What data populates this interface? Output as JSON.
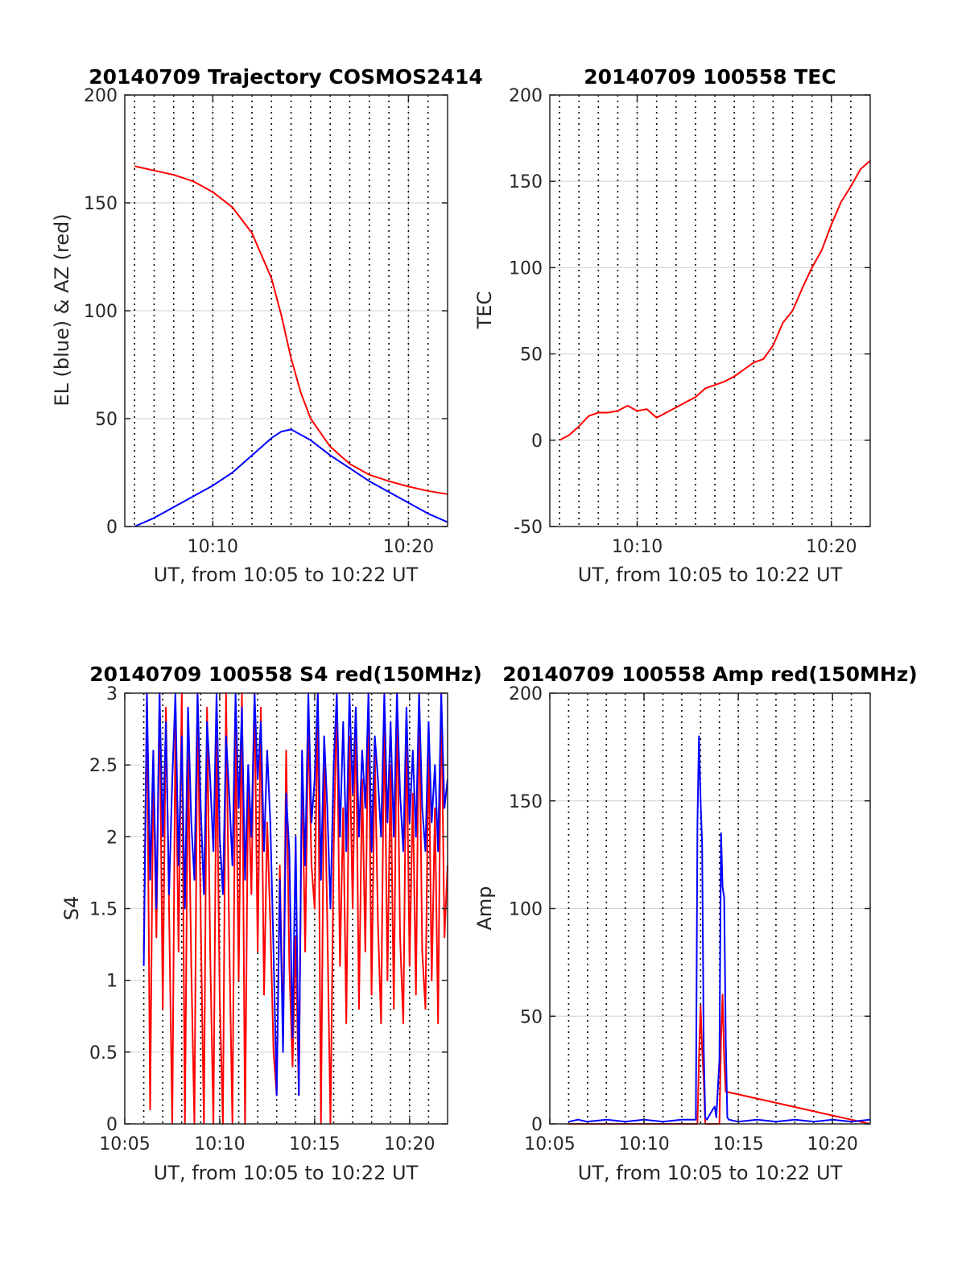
{
  "figure": {
    "background": "#ffffff"
  },
  "colors": {
    "az_line": "#ff0000",
    "el_line": "#0000ff",
    "grid": "#d9d9d9",
    "axes": "#262626",
    "vline": "#000000"
  },
  "chart_data": [
    {
      "id": "traj",
      "type": "line",
      "title": "20140709 Trajectory COSMOS2414",
      "xlabel": "UT, from 10:05 to 10:22 UT",
      "ylabel": "EL (blue) & AZ (red)",
      "xlim": [
        "10:05:30",
        "10:22:00"
      ],
      "ylim": [
        0,
        200
      ],
      "xticks": [
        "10:10",
        "10:20"
      ],
      "yticks": [
        0,
        50,
        100,
        150,
        200
      ],
      "grid": true,
      "series": [
        {
          "color": "#ff0000",
          "x": [
            "10:06:00",
            "10:07:00",
            "10:08:00",
            "10:09:00",
            "10:10:00",
            "10:11:00",
            "10:12:00",
            "10:13:00",
            "10:13:30",
            "10:14:00",
            "10:14:30",
            "10:15:00",
            "10:16:00",
            "10:17:00",
            "10:18:00",
            "10:19:00",
            "10:20:00",
            "10:21:00",
            "10:22:00"
          ],
          "values": [
            167,
            165,
            163,
            160,
            155,
            148,
            136,
            115,
            98,
            78,
            62,
            50,
            37,
            29,
            24,
            21,
            18.5,
            16.5,
            15
          ]
        },
        {
          "color": "#0000ff",
          "x": [
            "10:06:00",
            "10:07:00",
            "10:08:00",
            "10:09:00",
            "10:10:00",
            "10:11:00",
            "10:12:00",
            "10:13:00",
            "10:13:30",
            "10:14:00",
            "10:15:00",
            "10:16:00",
            "10:17:00",
            "10:18:00",
            "10:19:00",
            "10:20:00",
            "10:21:00",
            "10:22:00"
          ],
          "values": [
            0,
            4,
            9,
            14,
            19,
            25,
            33,
            41,
            44,
            45,
            40,
            33,
            27,
            21,
            16,
            11,
            6,
            2
          ]
        }
      ],
      "vlines": [
        "10:06:00",
        "10:07:00",
        "10:08:00",
        "10:09:00",
        "10:10:00",
        "10:11:00",
        "10:12:00",
        "10:13:00",
        "10:14:00",
        "10:15:00",
        "10:16:00",
        "10:17:00",
        "10:18:00",
        "10:19:00",
        "10:20:00",
        "10:21:00"
      ]
    },
    {
      "id": "tec",
      "type": "line",
      "title": "20140709 100558 TEC",
      "xlabel": "UT, from 10:05 to 10:22 UT",
      "ylabel": "TEC",
      "xlim": [
        "10:05:30",
        "10:22:00"
      ],
      "ylim": [
        -50,
        200
      ],
      "xticks": [
        "10:10",
        "10:20"
      ],
      "yticks": [
        -50,
        0,
        50,
        100,
        150,
        200
      ],
      "grid": true,
      "series": [
        {
          "color": "#ff0000",
          "x": [
            "10:06:00",
            "10:06:30",
            "10:07:00",
            "10:07:30",
            "10:08:00",
            "10:08:30",
            "10:09:00",
            "10:09:30",
            "10:10:00",
            "10:10:30",
            "10:11:00",
            "10:11:30",
            "10:12:00",
            "10:12:30",
            "10:13:00",
            "10:13:30",
            "10:14:00",
            "10:14:30",
            "10:15:00",
            "10:15:30",
            "10:16:00",
            "10:16:30",
            "10:17:00",
            "10:17:30",
            "10:18:00",
            "10:18:30",
            "10:19:00",
            "10:19:30",
            "10:20:00",
            "10:20:30",
            "10:21:00",
            "10:21:30",
            "10:22:00"
          ],
          "values": [
            0,
            3,
            8,
            14,
            16,
            16,
            17,
            20,
            17,
            18,
            13,
            16,
            19,
            22,
            25,
            30,
            32,
            34,
            37,
            41,
            45,
            47,
            55,
            68,
            75,
            88,
            100,
            110,
            125,
            138,
            147,
            157,
            162
          ]
        }
      ],
      "vlines": [
        "10:06:00",
        "10:07:00",
        "10:08:00",
        "10:09:00",
        "10:10:00",
        "10:11:00",
        "10:12:00",
        "10:13:00",
        "10:14:00",
        "10:15:00",
        "10:16:00",
        "10:17:00",
        "10:18:00",
        "10:19:00",
        "10:20:00",
        "10:21:00"
      ]
    },
    {
      "id": "s4",
      "type": "line",
      "title": "20140709 100558 S4 red(150MHz)",
      "xlabel": "UT, from 10:05 to 10:22 UT",
      "ylabel": "S4",
      "xlim": [
        "10:05:00",
        "10:22:00"
      ],
      "ylim": [
        0,
        3
      ],
      "xticks": [
        "10:05",
        "10:10",
        "10:15",
        "10:20"
      ],
      "yticks": [
        0,
        0.5,
        1,
        1.5,
        2,
        2.5,
        3
      ],
      "grid": true,
      "series": [
        {
          "color": "#ff0000",
          "x": [
            "10:06:00",
            "10:06:10",
            "10:06:20",
            "10:06:30",
            "10:06:40",
            "10:06:50",
            "10:07:00",
            "10:07:10",
            "10:07:20",
            "10:07:30",
            "10:07:40",
            "10:07:50",
            "10:08:00",
            "10:08:10",
            "10:08:20",
            "10:08:30",
            "10:08:40",
            "10:08:50",
            "10:09:00",
            "10:09:10",
            "10:09:20",
            "10:09:30",
            "10:09:40",
            "10:09:50",
            "10:10:00",
            "10:10:10",
            "10:10:20",
            "10:10:30",
            "10:10:40",
            "10:10:50",
            "10:11:00",
            "10:11:10",
            "10:11:20",
            "10:11:30",
            "10:11:40",
            "10:11:50",
            "10:12:00",
            "10:12:10",
            "10:12:20",
            "10:12:30",
            "10:12:40",
            "10:12:50",
            "10:13:00",
            "10:13:10",
            "10:13:20",
            "10:13:30",
            "10:13:40",
            "10:13:50",
            "10:14:00",
            "10:14:10",
            "10:14:20",
            "10:14:30",
            "10:14:40",
            "10:14:50",
            "10:15:00",
            "10:15:10",
            "10:15:20",
            "10:15:30",
            "10:15:40",
            "10:15:50",
            "10:16:00",
            "10:16:10",
            "10:16:20",
            "10:16:30",
            "10:16:40",
            "10:16:50",
            "10:17:00",
            "10:17:10",
            "10:17:20",
            "10:17:30",
            "10:17:40",
            "10:17:50",
            "10:18:00",
            "10:18:10",
            "10:18:20",
            "10:18:30",
            "10:18:40",
            "10:18:50",
            "10:19:00",
            "10:19:10",
            "10:19:20",
            "10:19:30",
            "10:19:40",
            "10:19:50",
            "10:20:00",
            "10:20:10",
            "10:20:20",
            "10:20:30",
            "10:20:40",
            "10:20:50",
            "10:21:00",
            "10:21:10",
            "10:21:20",
            "10:21:30",
            "10:21:40",
            "10:21:50",
            "10:22:00"
          ],
          "values": [
            1.2,
            3.0,
            0.1,
            2.5,
            1.3,
            3.0,
            0.8,
            2.9,
            1.5,
            0.0,
            2.8,
            1.2,
            3.0,
            0.0,
            2.6,
            1.1,
            0.0,
            3.0,
            1.4,
            0.0,
            2.9,
            1.2,
            0.0,
            2.7,
            0.9,
            0.0,
            3.0,
            1.3,
            0.0,
            2.8,
            1.0,
            3.0,
            0.0,
            2.4,
            1.6,
            3.0,
            1.2,
            2.9,
            0.9,
            2.1,
            1.4,
            0.5,
            0.2,
            1.8,
            0.6,
            2.6,
            1.1,
            0.4,
            1.3,
            0.2,
            2.5,
            1.2,
            2.8,
            1.8,
            1.5,
            3.0,
            0.0,
            2.6,
            1.4,
            0.0,
            1.9,
            3.0,
            1.1,
            2.2,
            0.7,
            2.7,
            1.5,
            2.9,
            0.8,
            2.4,
            1.2,
            3.0,
            0.9,
            2.6,
            1.4,
            0.7,
            2.9,
            1.0,
            2.5,
            0.8,
            3.0,
            1.3,
            0.7,
            2.8,
            1.1,
            2.3,
            0.9,
            3.0,
            1.2,
            0.8,
            2.7,
            1.0,
            2.2,
            0.7,
            3.0,
            1.3,
            1.8
          ]
        },
        {
          "color": "#0000ff",
          "x": [
            "10:06:00",
            "10:06:10",
            "10:06:20",
            "10:06:30",
            "10:06:40",
            "10:06:50",
            "10:07:00",
            "10:07:10",
            "10:07:20",
            "10:07:30",
            "10:07:40",
            "10:07:50",
            "10:08:00",
            "10:08:10",
            "10:08:20",
            "10:08:30",
            "10:08:40",
            "10:08:50",
            "10:09:00",
            "10:09:10",
            "10:09:20",
            "10:09:30",
            "10:09:40",
            "10:09:50",
            "10:10:00",
            "10:10:10",
            "10:10:20",
            "10:10:30",
            "10:10:40",
            "10:10:50",
            "10:11:00",
            "10:11:10",
            "10:11:20",
            "10:11:30",
            "10:11:40",
            "10:11:50",
            "10:12:00",
            "10:12:10",
            "10:12:20",
            "10:12:30",
            "10:12:40",
            "10:12:50",
            "10:13:00",
            "10:13:10",
            "10:13:20",
            "10:13:30",
            "10:13:40",
            "10:13:50",
            "10:14:00",
            "10:14:10",
            "10:14:20",
            "10:14:30",
            "10:14:40",
            "10:14:50",
            "10:15:00",
            "10:15:10",
            "10:15:20",
            "10:15:30",
            "10:15:40",
            "10:15:50",
            "10:16:00",
            "10:16:10",
            "10:16:20",
            "10:16:30",
            "10:16:40",
            "10:16:50",
            "10:17:00",
            "10:17:10",
            "10:17:20",
            "10:17:30",
            "10:17:40",
            "10:17:50",
            "10:18:00",
            "10:18:10",
            "10:18:20",
            "10:18:30",
            "10:18:40",
            "10:18:50",
            "10:19:00",
            "10:19:10",
            "10:19:20",
            "10:19:30",
            "10:19:40",
            "10:19:50",
            "10:20:00",
            "10:20:10",
            "10:20:20",
            "10:20:30",
            "10:20:40",
            "10:20:50",
            "10:21:00",
            "10:21:10",
            "10:21:20",
            "10:21:30",
            "10:21:40",
            "10:21:50",
            "10:22:00"
          ],
          "values": [
            1.1,
            3.0,
            1.7,
            2.6,
            1.5,
            3.0,
            2.0,
            2.8,
            1.6,
            2.4,
            3.0,
            1.8,
            2.7,
            1.5,
            2.9,
            2.1,
            1.7,
            3.0,
            2.2,
            1.6,
            2.8,
            2.4,
            1.9,
            3.0,
            2.0,
            1.6,
            2.7,
            2.3,
            1.8,
            3.0,
            2.2,
            2.9,
            1.7,
            2.5,
            2.0,
            3.0,
            2.4,
            2.8,
            1.9,
            2.6,
            2.1,
            1.2,
            0.2,
            1.7,
            0.5,
            2.3,
            1.9,
            0.6,
            2.0,
            0.2,
            2.6,
            1.8,
            3.0,
            2.1,
            2.4,
            3.0,
            1.7,
            2.7,
            2.2,
            1.5,
            2.5,
            3.0,
            2.0,
            2.8,
            1.9,
            3.0,
            2.3,
            2.9,
            2.0,
            2.6,
            2.2,
            3.0,
            1.9,
            2.7,
            2.4,
            2.0,
            3.0,
            2.1,
            2.8,
            2.0,
            3.0,
            2.3,
            1.9,
            2.9,
            2.1,
            2.6,
            2.0,
            3.0,
            2.2,
            1.9,
            2.8,
            2.1,
            2.5,
            1.9,
            3.0,
            2.2,
            2.4
          ]
        }
      ],
      "vlines": [
        "10:06:00",
        "10:07:00",
        "10:08:00",
        "10:09:00",
        "10:10:00",
        "10:11:00",
        "10:12:00",
        "10:13:00",
        "10:14:00",
        "10:15:00",
        "10:16:00",
        "10:17:00",
        "10:18:00",
        "10:19:00",
        "10:20:00",
        "10:21:00"
      ]
    },
    {
      "id": "amp",
      "type": "line",
      "title": "20140709 100558 Amp red(150MHz)",
      "xlabel": "UT, from 10:05 to 10:22 UT",
      "ylabel": "Amp",
      "xlim": [
        "10:05:00",
        "10:22:00"
      ],
      "ylim": [
        0,
        200
      ],
      "xticks": [
        "10:05",
        "10:10",
        "10:15",
        "10:20"
      ],
      "yticks": [
        0,
        50,
        100,
        150,
        200
      ],
      "grid": true,
      "series": [
        {
          "color": "#ff0000",
          "x": [
            "10:06:00",
            "10:12:50",
            "10:12:55",
            "10:13:00",
            "10:13:05",
            "10:13:10",
            "10:13:15",
            "10:14:00",
            "10:14:05",
            "10:14:10",
            "10:14:15",
            "10:14:20",
            "10:22:00"
          ],
          "values": [
            0,
            0,
            30,
            55,
            35,
            20,
            0,
            0,
            40,
            60,
            30,
            15,
            0
          ]
        },
        {
          "color": "#0000ff",
          "x": [
            "10:06:00",
            "10:06:30",
            "10:07:00",
            "10:08:00",
            "10:09:00",
            "10:10:00",
            "10:11:00",
            "10:12:00",
            "10:12:45",
            "10:12:50",
            "10:12:55",
            "10:13:00",
            "10:13:05",
            "10:13:10",
            "10:13:15",
            "10:13:20",
            "10:13:40",
            "10:13:45",
            "10:13:50",
            "10:14:00",
            "10:14:05",
            "10:14:10",
            "10:14:15",
            "10:14:20",
            "10:14:25",
            "10:14:30",
            "10:15:00",
            "10:16:00",
            "10:17:00",
            "10:18:00",
            "10:19:00",
            "10:20:00",
            "10:21:00",
            "10:22:00"
          ],
          "values": [
            1,
            2,
            1,
            2,
            1,
            2,
            1,
            2,
            2,
            140,
            180,
            150,
            130,
            35,
            3,
            2,
            7,
            8,
            3,
            30,
            135,
            110,
            105,
            40,
            3,
            2,
            1,
            2,
            1,
            2,
            1,
            2,
            1,
            2
          ]
        }
      ],
      "vlines": [
        "10:06:00",
        "10:07:00",
        "10:08:00",
        "10:09:00",
        "10:10:00",
        "10:11:00",
        "10:12:00",
        "10:13:00",
        "10:14:00",
        "10:15:00",
        "10:16:00",
        "10:17:00",
        "10:18:00",
        "10:19:00",
        "10:20:00",
        "10:21:00"
      ]
    }
  ]
}
